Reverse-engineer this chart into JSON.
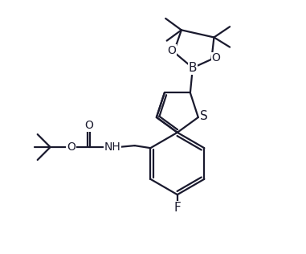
{
  "background_color": "#ffffff",
  "line_color": "#1a1a2e",
  "line_width": 1.6,
  "figsize": [
    3.81,
    3.16
  ],
  "dpi": 100,
  "xlim": [
    0,
    10
  ],
  "ylim": [
    0,
    8.3
  ]
}
